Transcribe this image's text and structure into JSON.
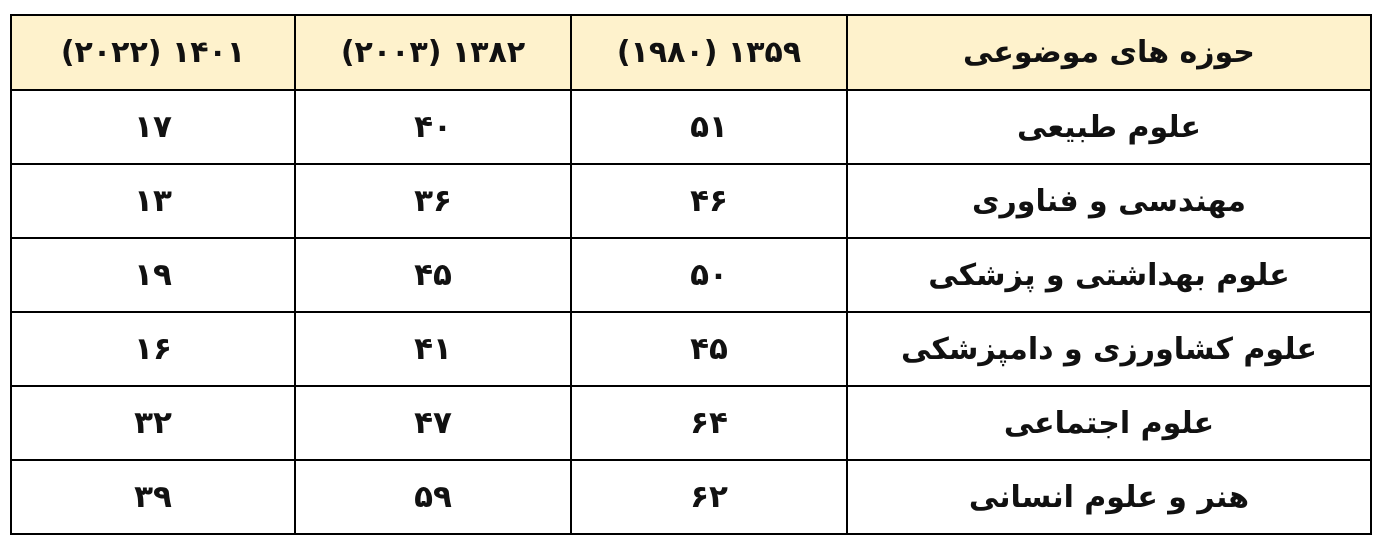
{
  "table": {
    "headers": [
      "حوزه های موضوعی",
      "۱۳۵۹ (۱۹۸۰)",
      "۱۳۸۲ (۲۰۰۳)",
      "۱۴۰۱ (۲۰۲۲)"
    ],
    "rows": [
      [
        "علوم طبیعی",
        "۵۱",
        "۴۰",
        "۱۷"
      ],
      [
        "مهندسی و فناوری",
        "۴۶",
        "۳۶",
        "۱۳"
      ],
      [
        "علوم بهداشتی و پزشکی",
        "۵۰",
        "۴۵",
        "۱۹"
      ],
      [
        "علوم کشاورزی و دامپزشکی",
        "۴۵",
        "۴۱",
        "۱۶"
      ],
      [
        "علوم اجتماعی",
        "۶۴",
        "۴۷",
        "۳۲"
      ],
      [
        "هنر و علوم انسانی",
        "۶۲",
        "۵۹",
        "۳۹"
      ]
    ]
  },
  "colors": {
    "header_background": "#fef2cc",
    "border": "#000000"
  }
}
